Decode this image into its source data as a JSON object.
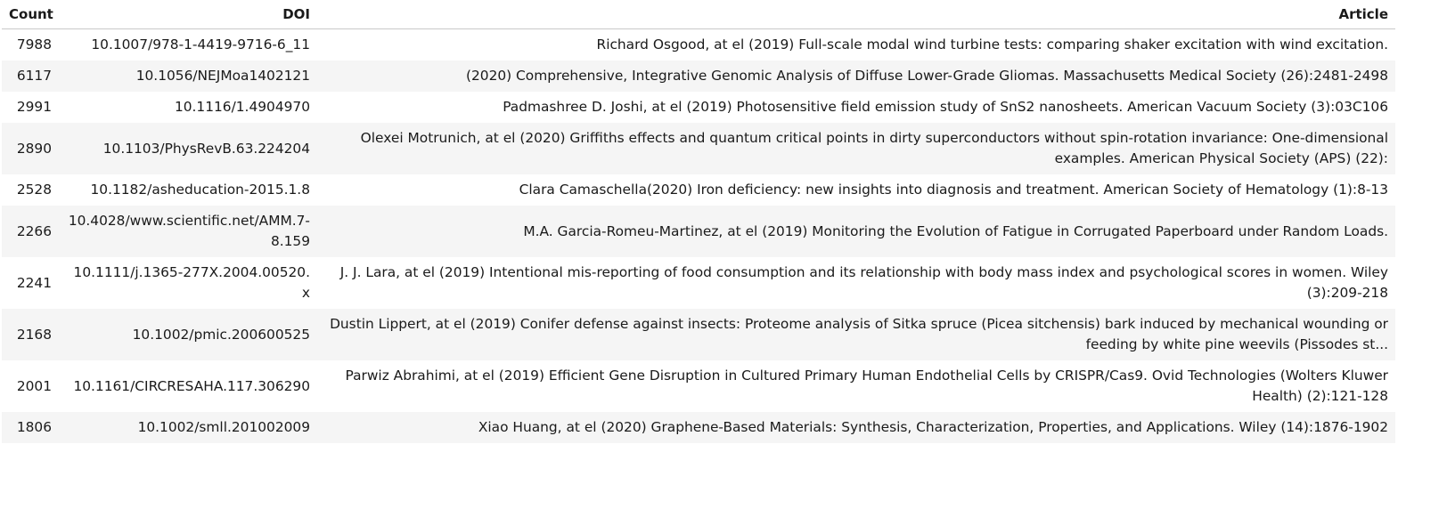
{
  "table": {
    "headers": {
      "count": "Count",
      "doi": "DOI",
      "article": "Article"
    },
    "rows": [
      {
        "count": "7988",
        "doi": "10.1007/978-1-4419-9716-6_11",
        "article": "Richard Osgood, at el (2019) Full-scale modal wind turbine tests: comparing shaker excitation with wind excitation."
      },
      {
        "count": "6117",
        "doi": "10.1056/NEJMoa1402121",
        "article": "(2020) Comprehensive, Integrative Genomic Analysis of Diffuse Lower-Grade Gliomas. Massachusetts Medical Society (26):2481-2498"
      },
      {
        "count": "2991",
        "doi": "10.1116/1.4904970",
        "article": "Padmashree D. Joshi, at el (2019) Photosensitive field emission study of SnS2 nanosheets. American Vacuum Society (3):03C106"
      },
      {
        "count": "2890",
        "doi": "10.1103/PhysRevB.63.224204",
        "article": "Olexei Motrunich, at el (2020) Griffiths effects and quantum critical points in dirty superconductors without spin-rotation invariance: One-dimensional examples. American Physical Society (APS) (22):"
      },
      {
        "count": "2528",
        "doi": "10.1182/asheducation-2015.1.8",
        "article": "Clara Camaschella(2020) Iron deficiency: new insights into diagnosis and treatment. American Society of Hematology (1):8-13"
      },
      {
        "count": "2266",
        "doi": "10.4028/www.scientific.net/AMM.7-8.159",
        "article": "M.A. Garcia-Romeu-Martinez, at el (2019) Monitoring the Evolution of Fatigue in Corrugated Paperboard under Random Loads."
      },
      {
        "count": "2241",
        "doi": "10.1111/j.1365-277X.2004.00520.x",
        "article": "J. J. Lara, at el (2019) Intentional mis-reporting of food consumption and its relationship with body mass index and psychological scores in women. Wiley (3):209-218"
      },
      {
        "count": "2168",
        "doi": "10.1002/pmic.200600525",
        "article": "Dustin Lippert, at el (2019) Conifer defense against insects: Proteome analysis of Sitka spruce (Picea sitchensis) bark induced by mechanical wounding or feeding by white pine weevils (Pissodes st..."
      },
      {
        "count": "2001",
        "doi": "10.1161/CIRCRESAHA.117.306290",
        "article": "Parwiz Abrahimi, at el (2019) Efficient Gene Disruption in Cultured Primary Human Endothelial Cells by CRISPR/Cas9. Ovid Technologies (Wolters Kluwer Health) (2):121-128"
      },
      {
        "count": "1806",
        "doi": "10.1002/smll.201002009",
        "article": "Xiao Huang, at el (2020) Graphene-Based Materials: Synthesis, Characterization, Properties, and Applications. Wiley (14):1876-1902"
      }
    ]
  }
}
